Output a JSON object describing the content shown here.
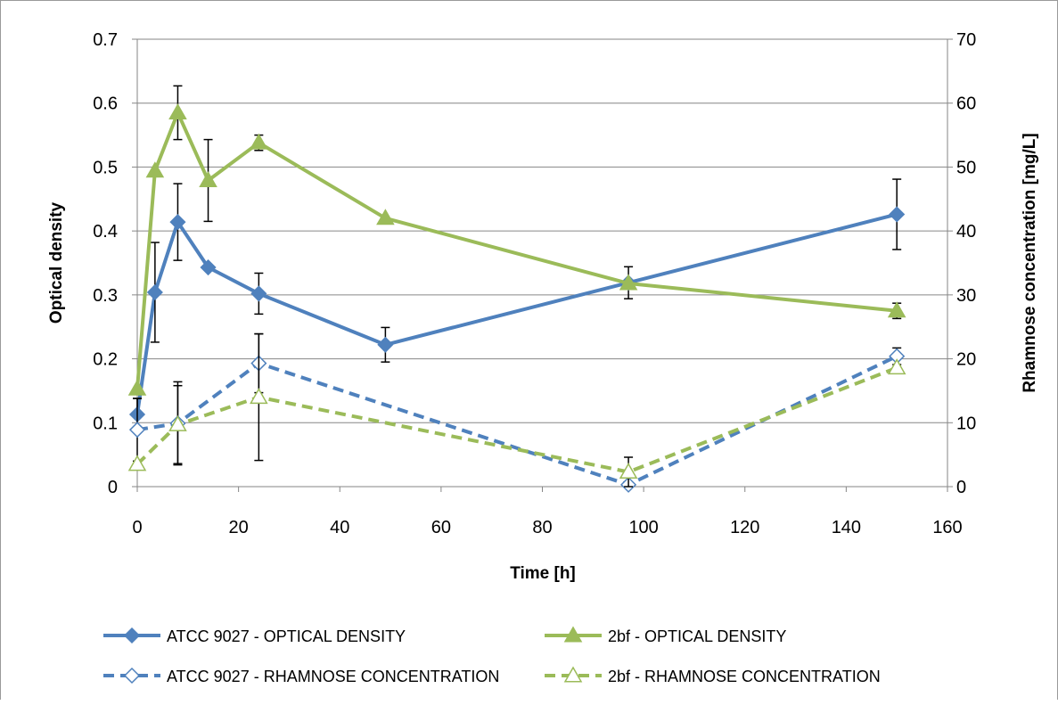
{
  "chart_data": {
    "type": "line",
    "title": "",
    "xlabel": "Time [h]",
    "ylabel": "Optical density",
    "y2label": "Rhamnose concentration [mg/L]",
    "xlim": [
      0,
      160
    ],
    "ylim": [
      0,
      0.7
    ],
    "y2lim": [
      0,
      70
    ],
    "xticks": [
      "0",
      "20",
      "40",
      "60",
      "80",
      "100",
      "120",
      "140",
      "160"
    ],
    "yticks": [
      "0",
      "0.1",
      "0.2",
      "0.3",
      "0.4",
      "0.5",
      "0.6",
      "0.7"
    ],
    "y2ticks": [
      "0",
      "10",
      "20",
      "30",
      "40",
      "50",
      "60",
      "70"
    ],
    "grid": "horizontal",
    "legend_position": "bottom",
    "series": [
      {
        "name": "ATCC 9027 - OPTICAL DENSITY",
        "axis": "left",
        "color": "#4f81bd",
        "line": "solid",
        "marker": "diamond-filled",
        "x": [
          0,
          3.5,
          8,
          14,
          24,
          49,
          97,
          150
        ],
        "y": [
          0.113,
          0.304,
          0.414,
          0.343,
          0.302,
          0.222,
          0.319,
          0.426
        ],
        "err": [
          0.025,
          0.078,
          0.06,
          0,
          0.032,
          0.027,
          0.025,
          0.055
        ]
      },
      {
        "name": "2bf - OPTICAL DENSITY",
        "axis": "left",
        "color": "#9bbb59",
        "line": "solid",
        "marker": "triangle-filled",
        "x": [
          0,
          3.5,
          8,
          14,
          24,
          49,
          97,
          150
        ],
        "y": [
          0.153,
          0.494,
          0.585,
          0.479,
          0.538,
          0.42,
          0.318,
          0.275
        ],
        "err": [
          0,
          0,
          0.042,
          0.064,
          0.012,
          0,
          0,
          0.012
        ]
      },
      {
        "name": "ATCC 9027 - RHAMNOSE CONCENTRATION",
        "axis": "right",
        "color": "#4f81bd",
        "line": "dashed",
        "marker": "diamond-open",
        "x": [
          0,
          8,
          24,
          97,
          150
        ],
        "y": [
          8.9,
          9.9,
          19.3,
          0.3,
          20.4
        ],
        "err": [
          4.9,
          6.5,
          4.6,
          0,
          1.3
        ]
      },
      {
        "name": "2bf - RHAMNOSE CONCENTRATION",
        "axis": "right",
        "color": "#9bbb59",
        "line": "dashed",
        "marker": "triangle-open",
        "x": [
          0,
          8,
          24,
          97,
          150
        ],
        "y": [
          3.5,
          9.7,
          14.0,
          2.3,
          18.6
        ],
        "err": [
          0,
          6.1,
          9.9,
          2.3,
          0
        ]
      }
    ]
  }
}
